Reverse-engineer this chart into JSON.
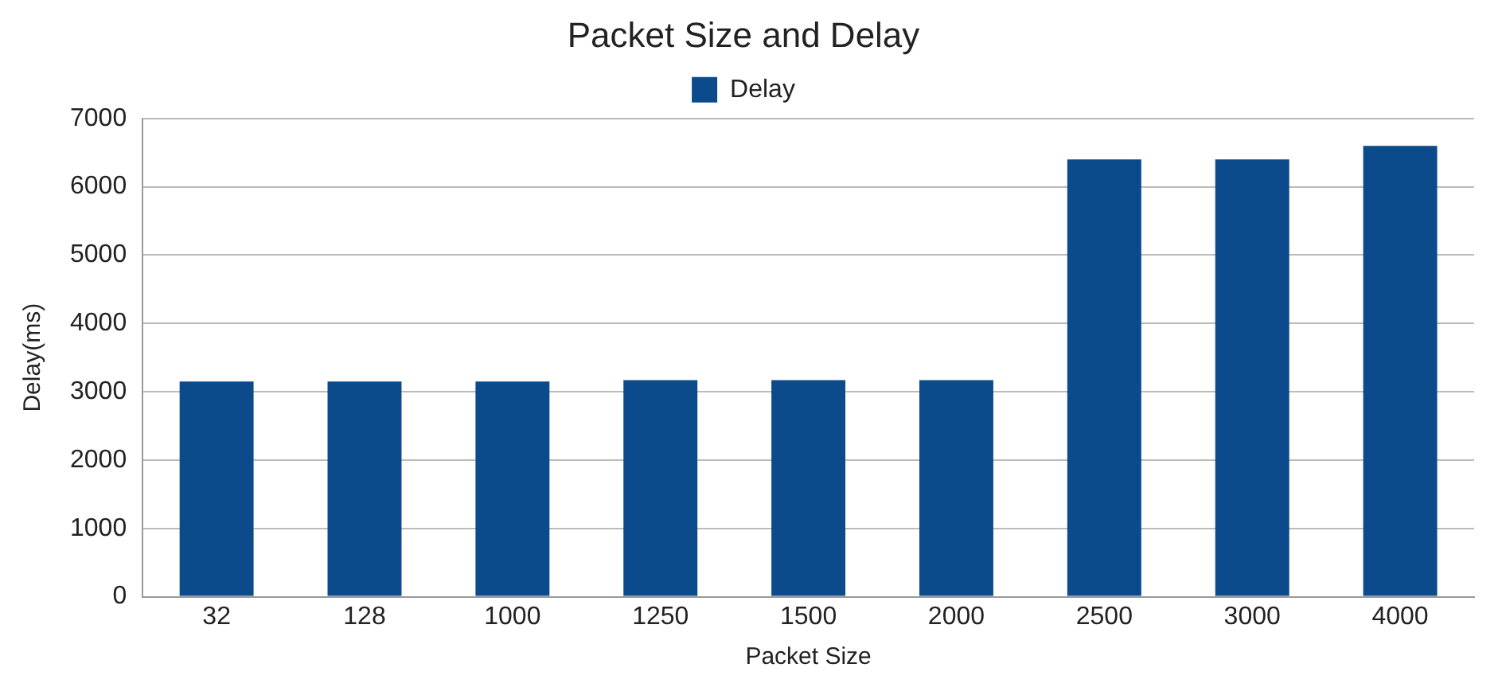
{
  "chart_data": {
    "type": "bar",
    "title": "Packet Size and Delay",
    "xlabel": "Packet Size",
    "ylabel": "Delay(ms)",
    "categories": [
      "32",
      "128",
      "1000",
      "1250",
      "1500",
      "2000",
      "2500",
      "3000",
      "4000"
    ],
    "series": [
      {
        "name": "Delay",
        "color": "#0b4a8b",
        "values": [
          3150,
          3150,
          3150,
          3170,
          3170,
          3170,
          6400,
          6400,
          6600
        ]
      }
    ],
    "ylim": [
      0,
      7000
    ],
    "yticks": [
      0,
      1000,
      2000,
      3000,
      4000,
      5000,
      6000,
      7000
    ],
    "grid": "y",
    "legend": "top"
  }
}
